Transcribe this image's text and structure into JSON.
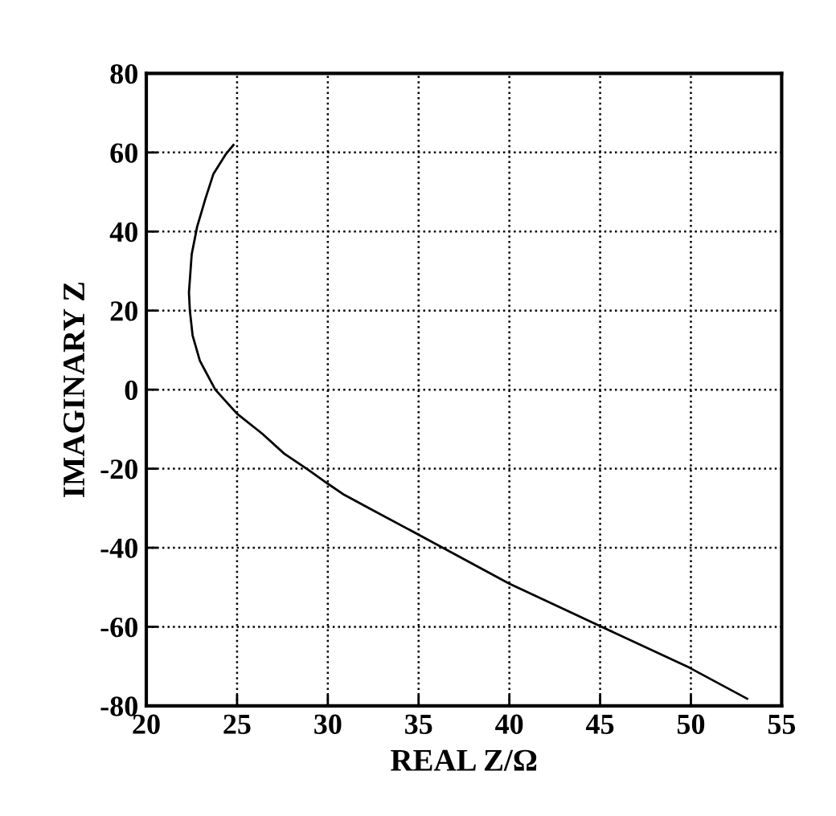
{
  "chart_data": {
    "type": "line",
    "xlabel": "REAL Z/Ω",
    "ylabel": "IMAGINARY Z",
    "xlim": [
      20,
      55
    ],
    "xticks": [
      20,
      25,
      30,
      35,
      40,
      45,
      50,
      55
    ],
    "ylim": [
      -80,
      80
    ],
    "yticks": [
      -80,
      -60,
      -40,
      -20,
      0,
      20,
      40,
      60,
      80
    ],
    "grid": true,
    "marker": "none",
    "line_style": "solid",
    "series": [
      {
        "color": "#000000",
        "x": [
          24.8,
          24.4,
          23.7,
          23.25,
          22.8,
          22.5,
          22.35,
          22.4,
          22.55,
          22.95,
          23.8,
          25.0,
          26.4,
          27.6,
          28.9,
          30.0,
          30.9,
          32.6,
          35.0,
          36.7,
          40.0,
          44.9,
          49.9,
          53.1
        ],
        "values": [
          61.9,
          59.7,
          54.6,
          48.2,
          41.2,
          34.2,
          24.6,
          20.0,
          13.7,
          7.3,
          0,
          -6.1,
          -11.2,
          -16.2,
          -20.2,
          -23.8,
          -26.6,
          -30.8,
          -36.7,
          -40.9,
          -49.1,
          -59.6,
          -70.3,
          -78.2
        ]
      }
    ]
  }
}
